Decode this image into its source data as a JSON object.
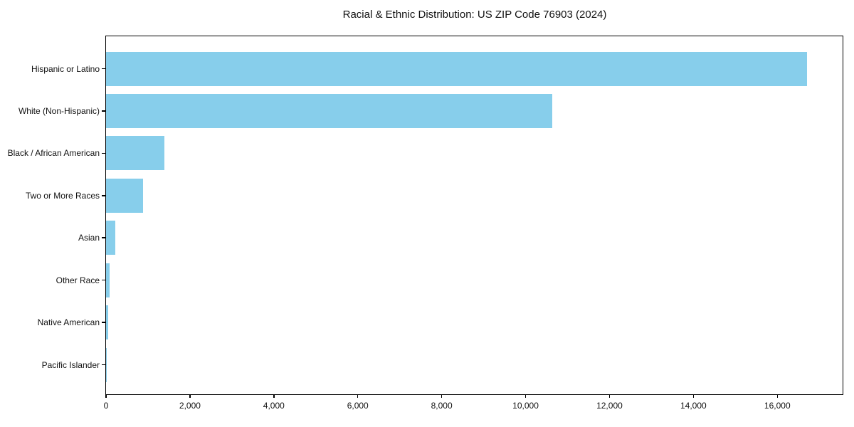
{
  "chart_data": {
    "type": "bar",
    "orientation": "horizontal",
    "title": "Racial & Ethnic Distribution: US ZIP Code 76903 (2024)",
    "categories": [
      "Hispanic or Latino",
      "White (Non-Hispanic)",
      "Black / African American",
      "Two or More Races",
      "Asian",
      "Other Race",
      "Native American",
      "Pacific Islander"
    ],
    "values": [
      16700,
      10640,
      1390,
      880,
      220,
      85,
      45,
      10
    ],
    "xlabel": "",
    "ylabel": "",
    "xlim": [
      0,
      17556
    ],
    "x_ticks": [
      0,
      2000,
      4000,
      6000,
      8000,
      10000,
      12000,
      14000,
      16000
    ],
    "x_tick_labels": [
      "0",
      "2,000",
      "4,000",
      "6,000",
      "8,000",
      "10,000",
      "12,000",
      "14,000",
      "16,000"
    ],
    "bar_color": "#87CEEB",
    "axis_color": "#000000",
    "text_color": "#111111",
    "background": "#ffffff",
    "grid": false,
    "legend": "none"
  }
}
